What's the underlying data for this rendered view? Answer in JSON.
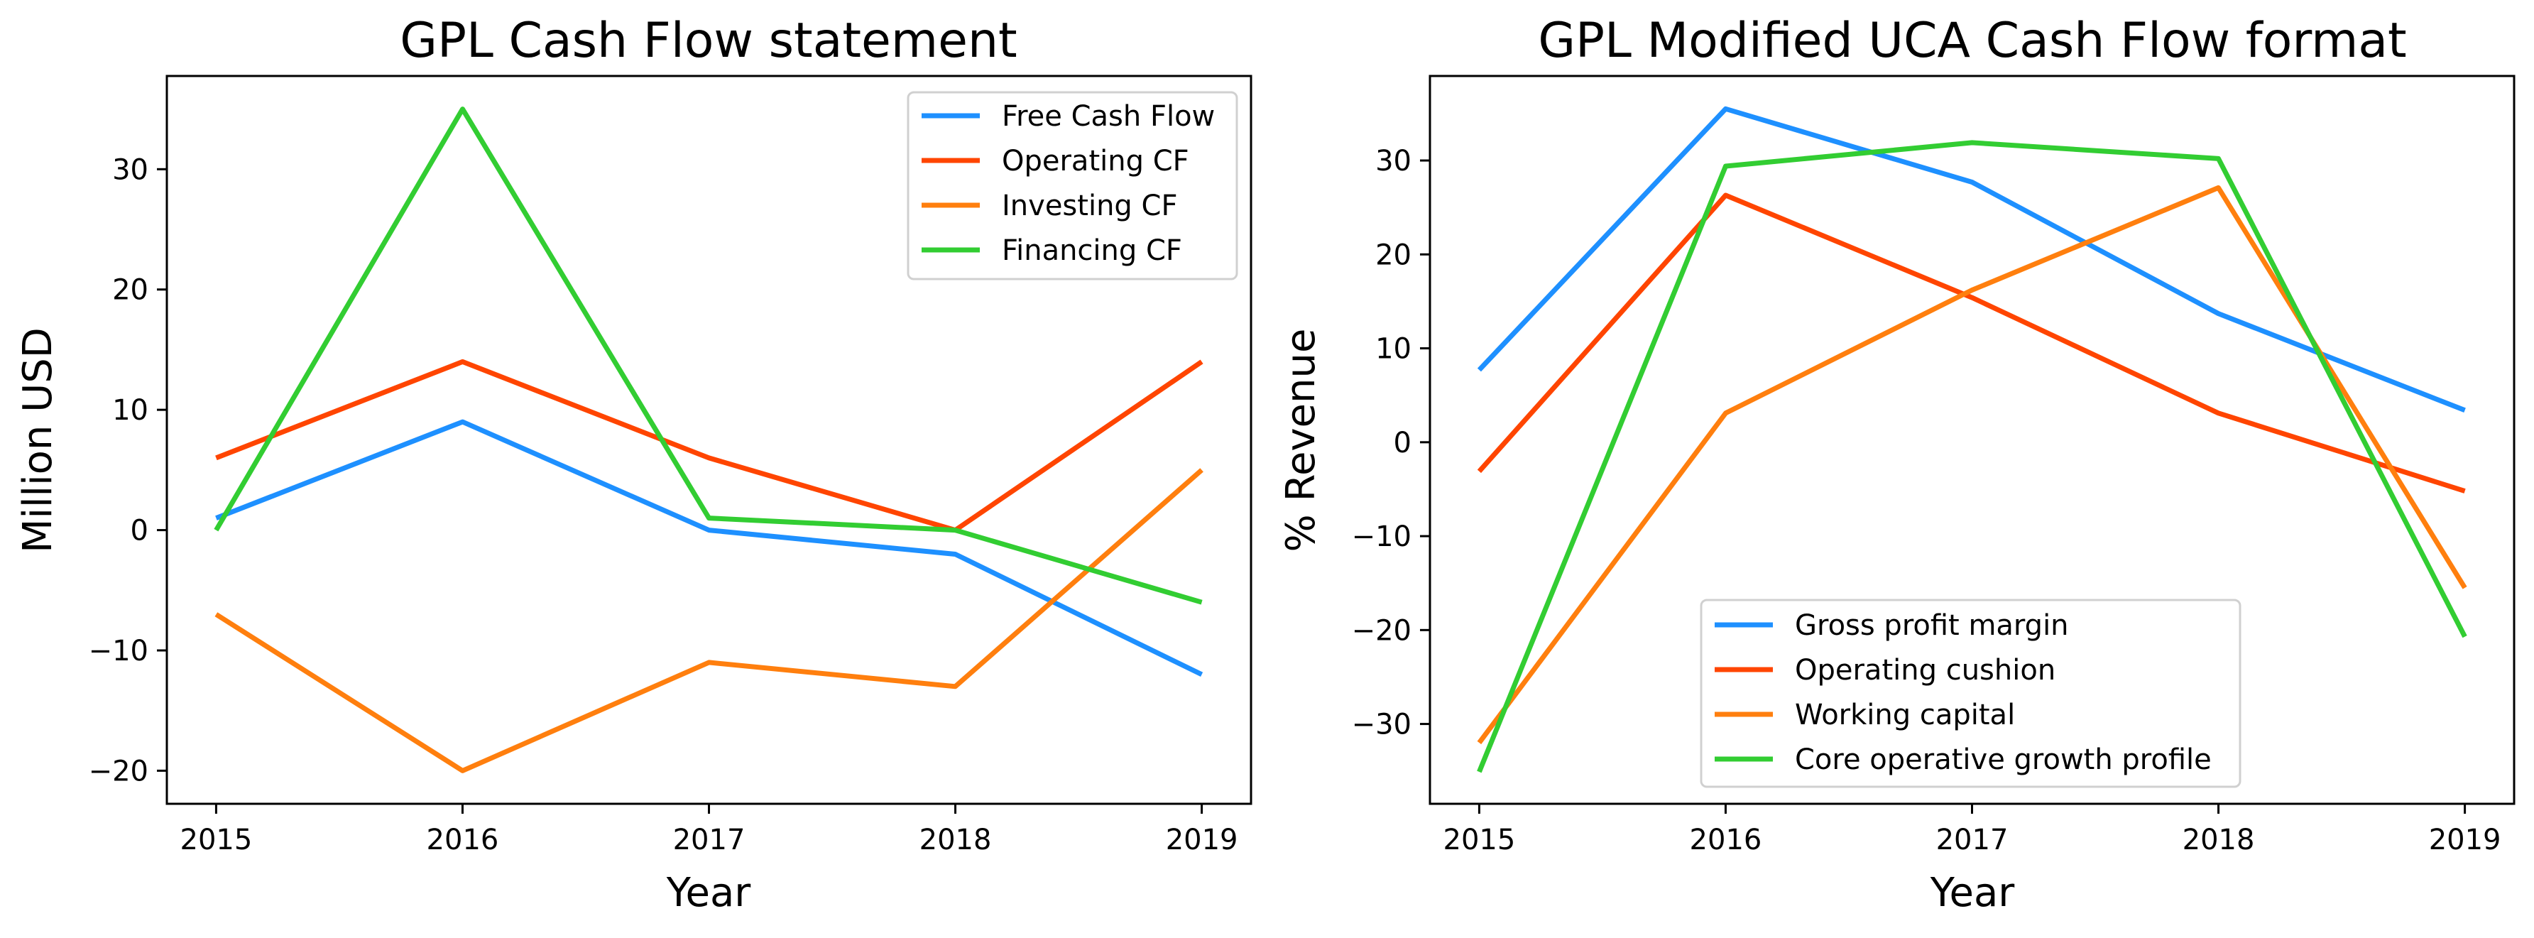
{
  "chart_data": [
    {
      "type": "line",
      "title": "GPL Cash Flow statement",
      "xlabel": "Year",
      "ylabel": "Million USD",
      "x": [
        2015,
        2016,
        2017,
        2018,
        2019
      ],
      "x_ticks": [
        "2015",
        "2016",
        "2017",
        "2018",
        "2019"
      ],
      "y_ticks": [
        "−20",
        "−10",
        "0",
        "10",
        "20",
        "30"
      ],
      "xlim": [
        2014.8,
        2019.2
      ],
      "ylim": [
        -22.75,
        37.75
      ],
      "grid": false,
      "legend_position": "top-right",
      "series": [
        {
          "name": "Free Cash Flow",
          "color": "#1e90ff",
          "values": [
            1,
            9,
            0,
            -2,
            -12
          ]
        },
        {
          "name": "Operating CF",
          "color": "#ff4500",
          "values": [
            6,
            14,
            6,
            0,
            14
          ]
        },
        {
          "name": "Investing CF",
          "color": "#ff7f0e",
          "values": [
            -7,
            -20,
            -11,
            -13,
            5
          ]
        },
        {
          "name": "Financing CF",
          "color": "#32cd32",
          "values": [
            0,
            35,
            1,
            0,
            -6
          ]
        }
      ]
    },
    {
      "type": "line",
      "title": "GPL Modified UCA Cash Flow format",
      "xlabel": "Year",
      "ylabel": "% Revenue",
      "x": [
        2015,
        2016,
        2017,
        2018,
        2019
      ],
      "x_ticks": [
        "2015",
        "2016",
        "2017",
        "2018",
        "2019"
      ],
      "y_ticks": [
        "−30",
        "−20",
        "−10",
        "0",
        "10",
        "20",
        "30"
      ],
      "xlim": [
        2014.8,
        2019.2
      ],
      "ylim": [
        -38.5,
        39.0
      ],
      "grid": false,
      "legend_position": "lower-center",
      "series": [
        {
          "name": "Gross profit margin",
          "color": "#1e90ff",
          "values": [
            7.7,
            35.5,
            27.7,
            13.7,
            3.4
          ]
        },
        {
          "name": "Operating cushion",
          "color": "#ff4500",
          "values": [
            -3.1,
            26.3,
            15.4,
            3.1,
            -5.2
          ]
        },
        {
          "name": "Working capital",
          "color": "#ff7f0e",
          "values": [
            -32,
            3.1,
            16.2,
            27.1,
            -15.5
          ]
        },
        {
          "name": "Core operative growth profile",
          "color": "#32cd32",
          "values": [
            -35.1,
            29.4,
            31.9,
            30.2,
            -20.7
          ]
        }
      ]
    }
  ]
}
